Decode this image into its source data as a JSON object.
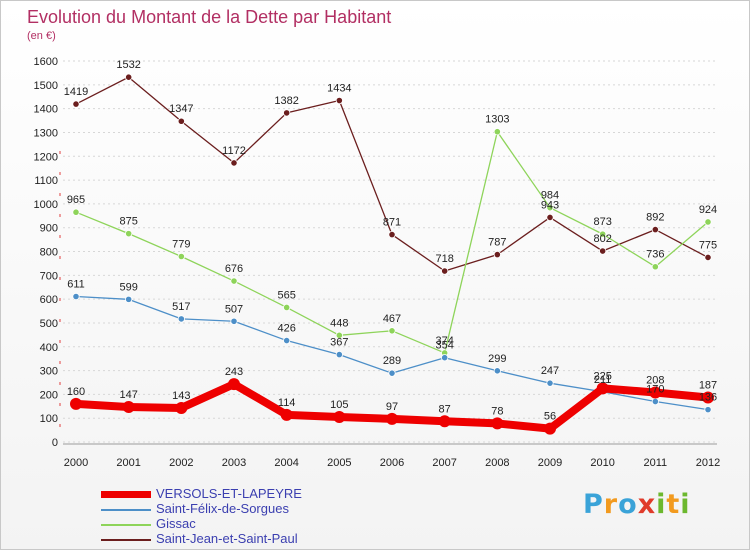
{
  "header": {
    "title": "Evolution du Montant de la Dette par Habitant",
    "unit": "(en €)"
  },
  "logo": {
    "letters": [
      "P",
      "r",
      "o",
      "x",
      "i",
      "t",
      "i"
    ],
    "colors": [
      "#3aa3d8",
      "#f29a1e",
      "#3aa3d8",
      "#e03b2a",
      "#6cb82e",
      "#f29a1e",
      "#6cb82e"
    ]
  },
  "chart_data": {
    "type": "line",
    "x": [
      2000,
      2001,
      2002,
      2003,
      2004,
      2005,
      2006,
      2007,
      2008,
      2009,
      2010,
      2011,
      2012
    ],
    "ylim": [
      0,
      1600
    ],
    "yticks": [
      0,
      100,
      200,
      300,
      400,
      500,
      600,
      700,
      800,
      900,
      1000,
      1100,
      1200,
      1300,
      1400,
      1500,
      1600
    ],
    "grid": true,
    "legend_position": "bottom-left",
    "series": [
      {
        "name": "Saint-Jean-et-Saint-Paul",
        "color": "#6b1e1e",
        "values": [
          1419,
          1532,
          1347,
          1172,
          1382,
          1434,
          871,
          718,
          787,
          943,
          802,
          892,
          775
        ]
      },
      {
        "name": "Gissac",
        "color": "#8ed45a",
        "values": [
          965,
          875,
          779,
          676,
          565,
          448,
          467,
          374,
          1303,
          984,
          873,
          736,
          924
        ]
      },
      {
        "name": "Saint-Félix-de-Sorgues",
        "color": "#4d8fc8",
        "values": [
          611,
          599,
          517,
          507,
          426,
          367,
          289,
          354,
          299,
          247,
          211,
          170,
          136
        ]
      },
      {
        "name": "VERSOLS-ET-LAPEYRE",
        "color": "#ee0000",
        "values": [
          160,
          147,
          143,
          243,
          114,
          105,
          97,
          87,
          78,
          56,
          225,
          208,
          187
        ]
      }
    ]
  }
}
